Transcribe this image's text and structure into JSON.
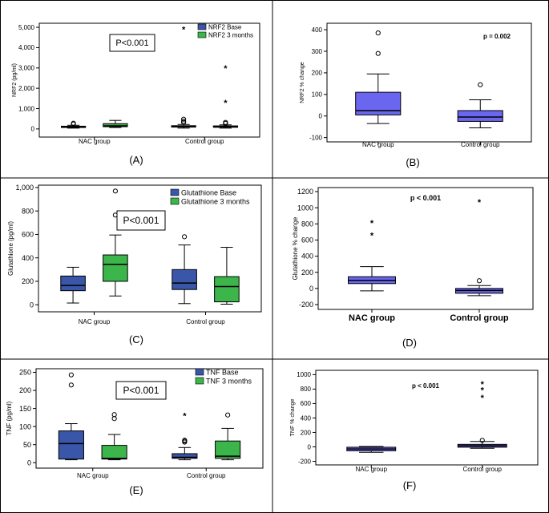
{
  "colors": {
    "base": "#3a56a8",
    "followup": "#3cb54a",
    "change": "#6b66f0",
    "frame": "#000000"
  },
  "chart_data": [
    {
      "id": "A",
      "type": "box",
      "panel_label": "(A)",
      "ylabel": "NRF2 (pg/ml)",
      "ylim": [
        -400,
        5200
      ],
      "yticks": [
        0,
        1000,
        2000,
        3000,
        4000,
        5000
      ],
      "ytick_labels": [
        "0",
        "1,000",
        "2,000",
        "3,000",
        "4,000",
        "5,000"
      ],
      "categories": [
        "NAC group",
        "Control group"
      ],
      "legend": [
        "NRF2 Base",
        "NRF2 3 months"
      ],
      "annotation": "P<0.001",
      "series": [
        {
          "name": "NRF2 Base",
          "boxes": [
            {
              "whislo": 40,
              "q1": 70,
              "med": 95,
              "q3": 135,
              "whishi": 180,
              "outliers": [
                240,
                280
              ],
              "extremes": []
            },
            {
              "whislo": 40,
              "q1": 90,
              "med": 120,
              "q3": 160,
              "whishi": 220,
              "outliers": [
                320,
                380,
                480
              ],
              "extremes": [
                4900
              ]
            }
          ]
        },
        {
          "name": "NRF2 3 months",
          "boxes": [
            {
              "whislo": 70,
              "q1": 110,
              "med": 150,
              "q3": 260,
              "whishi": 420,
              "outliers": [],
              "extremes": []
            },
            {
              "whislo": 40,
              "q1": 80,
              "med": 110,
              "q3": 150,
              "whishi": 200,
              "outliers": [
                270,
                320
              ],
              "extremes": [
                1300,
                3000
              ]
            }
          ]
        }
      ]
    },
    {
      "id": "B",
      "type": "box",
      "panel_label": "(B)",
      "ylabel": "NRF2 % change",
      "ylim": [
        -120,
        430
      ],
      "yticks": [
        -100,
        0,
        100,
        200,
        300,
        400
      ],
      "ytick_labels": [
        "-100",
        "0",
        "100",
        "200",
        "300",
        "400"
      ],
      "categories": [
        "NAC group",
        "Control group"
      ],
      "legend": [],
      "annotation": "p = 0.002",
      "series": [
        {
          "name": "NRF2 % change",
          "boxes": [
            {
              "whislo": -35,
              "q1": 5,
              "med": 25,
              "q3": 110,
              "whishi": 195,
              "outliers": [
                290,
                385
              ],
              "extremes": []
            },
            {
              "whislo": -55,
              "q1": -25,
              "med": -5,
              "q3": 25,
              "whishi": 75,
              "outliers": [
                145
              ],
              "extremes": []
            }
          ]
        }
      ]
    },
    {
      "id": "C",
      "type": "box",
      "panel_label": "(C)",
      "ylabel": "Glutathione (pg/ml)",
      "ylim": [
        -60,
        1020
      ],
      "yticks": [
        0,
        200,
        400,
        600,
        800,
        1000
      ],
      "ytick_labels": [
        "0",
        "200",
        "400",
        "600",
        "800",
        "1,000"
      ],
      "categories": [
        "NAC group",
        "Control group"
      ],
      "legend": [
        "Glutathione Base",
        "Glutathione 3 months"
      ],
      "annotation": "P<0.001",
      "series": [
        {
          "name": "Glutathione Base",
          "boxes": [
            {
              "whislo": 15,
              "q1": 120,
              "med": 165,
              "q3": 245,
              "whishi": 320,
              "outliers": [],
              "extremes": []
            },
            {
              "whislo": 10,
              "q1": 130,
              "med": 185,
              "q3": 300,
              "whishi": 510,
              "outliers": [
                580
              ],
              "extremes": []
            }
          ]
        },
        {
          "name": "Glutathione 3 months",
          "boxes": [
            {
              "whislo": 75,
              "q1": 200,
              "med": 345,
              "q3": 425,
              "whishi": 595,
              "outliers": [
                765,
                970
              ],
              "extremes": []
            },
            {
              "whislo": 5,
              "q1": 25,
              "med": 155,
              "q3": 240,
              "whishi": 490,
              "outliers": [],
              "extremes": []
            }
          ]
        }
      ]
    },
    {
      "id": "D",
      "type": "box",
      "panel_label": "(D)",
      "ylabel": "Glutathione % change",
      "ylim": [
        -260,
        1250
      ],
      "yticks": [
        -200,
        0,
        200,
        400,
        600,
        800,
        1000,
        1200
      ],
      "ytick_labels": [
        "-200",
        "0",
        "200",
        "400",
        "600",
        "800",
        "1000",
        "1200"
      ],
      "categories": [
        "NAC group",
        "Control group"
      ],
      "legend": [],
      "annotation": "p < 0.001",
      "series": [
        {
          "name": "Glutathione % change",
          "boxes": [
            {
              "whislo": -30,
              "q1": 60,
              "med": 100,
              "q3": 145,
              "whishi": 270,
              "outliers": [],
              "extremes": [
                660,
                815
              ]
            },
            {
              "whislo": -90,
              "q1": -60,
              "med": -25,
              "q3": 0,
              "whishi": 35,
              "outliers": [
                95
              ],
              "extremes": [
                1070
              ]
            }
          ]
        }
      ]
    },
    {
      "id": "E",
      "type": "box",
      "panel_label": "(E)",
      "ylabel": "TNF (pg/ml)",
      "ylim": [
        -15,
        260
      ],
      "yticks": [
        0,
        50,
        100,
        150,
        200,
        250
      ],
      "ytick_labels": [
        "0",
        "50",
        "100",
        "150",
        "200",
        "250"
      ],
      "categories": [
        "NAC group",
        "Control group"
      ],
      "legend": [
        "TNF Base",
        "TNF 3 months"
      ],
      "annotation": "P<0.001",
      "series": [
        {
          "name": "TNF Base",
          "boxes": [
            {
              "whislo": 8,
              "q1": 10,
              "med": 53,
              "q3": 88,
              "whishi": 108,
              "outliers": [
                215,
                243
              ],
              "extremes": []
            },
            {
              "whislo": 8,
              "q1": 12,
              "med": 15,
              "q3": 25,
              "whishi": 42,
              "outliers": [
                57,
                60,
                62
              ],
              "extremes": [
                130
              ]
            }
          ]
        },
        {
          "name": "TNF 3 months",
          "boxes": [
            {
              "whislo": 8,
              "q1": 10,
              "med": 12,
              "q3": 48,
              "whishi": 78,
              "outliers": [
                122,
                133
              ],
              "extremes": []
            },
            {
              "whislo": 8,
              "q1": 12,
              "med": 18,
              "q3": 60,
              "whishi": 95,
              "outliers": [
                132
              ],
              "extremes": []
            }
          ]
        }
      ]
    },
    {
      "id": "F",
      "type": "box",
      "panel_label": "(F)",
      "ylabel": "TNF % change",
      "ylim": [
        -250,
        1060
      ],
      "yticks": [
        -200,
        0,
        200,
        400,
        600,
        800,
        1000
      ],
      "ytick_labels": [
        "-200",
        "0",
        "200",
        "400",
        "600",
        "800",
        "1000"
      ],
      "categories": [
        "NAC group",
        "Control group"
      ],
      "legend": [],
      "annotation": "p < 0.001",
      "series": [
        {
          "name": "TNF % change",
          "boxes": [
            {
              "whislo": -75,
              "q1": -55,
              "med": -30,
              "q3": -5,
              "whishi": 5,
              "outliers": [],
              "extremes": []
            },
            {
              "whislo": -20,
              "q1": -5,
              "med": 15,
              "q3": 35,
              "whishi": 75,
              "outliers": [
                90
              ],
              "extremes": [
                680,
                790,
                870
              ]
            }
          ]
        }
      ]
    }
  ]
}
